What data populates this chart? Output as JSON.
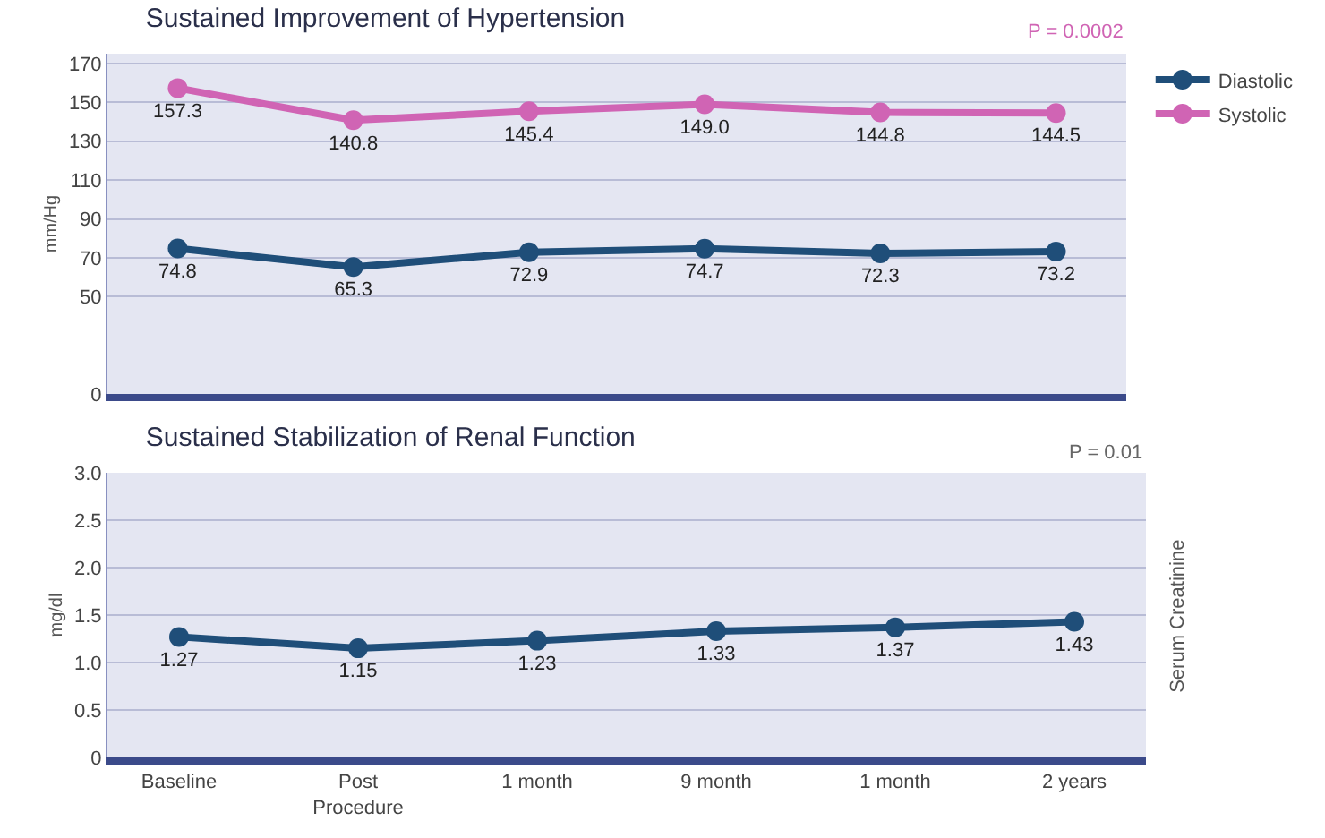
{
  "chart_data": [
    {
      "type": "line",
      "title": "Sustained Improvement of Hypertension",
      "ylabel": "mm/Hg",
      "annotations": [
        "P = 0.0002"
      ],
      "categories": [
        null,
        null,
        null,
        null,
        null,
        null
      ],
      "tick_labels": "y",
      "series": [
        {
          "name": "Diastolic",
          "color": "#1f4e79",
          "values": [
            74.8,
            65.3,
            72.9,
            74.7,
            72.3,
            73.2
          ],
          "value_labels": [
            "74.8",
            "65.3",
            "72.9",
            "74.7",
            "72.3",
            "73.2"
          ]
        },
        {
          "name": "Systolic",
          "color": "#d064b4",
          "values": [
            157.3,
            140.8,
            145.4,
            149.0,
            144.8,
            144.5
          ],
          "value_labels": [
            "157.3",
            "140.8",
            "145.4",
            "149.0",
            "144.8",
            "144.5"
          ]
        }
      ],
      "ylim": [
        0,
        175
      ],
      "yticks": [
        0,
        50,
        70,
        90,
        110,
        130,
        150,
        170
      ],
      "grid": "y",
      "legend": "right",
      "marker": "circle"
    },
    {
      "type": "line",
      "title": "Sustained Stabilization of Renal Function",
      "ylabel": "mg/dl",
      "annotations": [
        "P = 0.01",
        "Serum Creatinine"
      ],
      "categories": [
        "Baseline",
        "Post Procedure",
        "1 month",
        "9 month",
        "1 month",
        "2 years"
      ],
      "series": [
        {
          "color": "#1f4e79",
          "values": [
            1.27,
            1.15,
            1.23,
            1.33,
            1.37,
            1.43
          ]
        }
      ],
      "ylim": [
        0,
        3
      ],
      "yticks": [
        0,
        {
          "value": 0.5,
          "label": "0.5"
        },
        {
          "value": 1,
          "label": "1.0"
        },
        {
          "value": 1.5,
          "label": "1.5"
        },
        {
          "value": 2,
          "label": "2.0"
        },
        {
          "value": 2.5,
          "label": "2.5"
        },
        {
          "value": 3,
          "label": "3.0"
        }
      ],
      "grid": "y",
      "marker": "circle",
      "data_labels": true
    }
  ]
}
